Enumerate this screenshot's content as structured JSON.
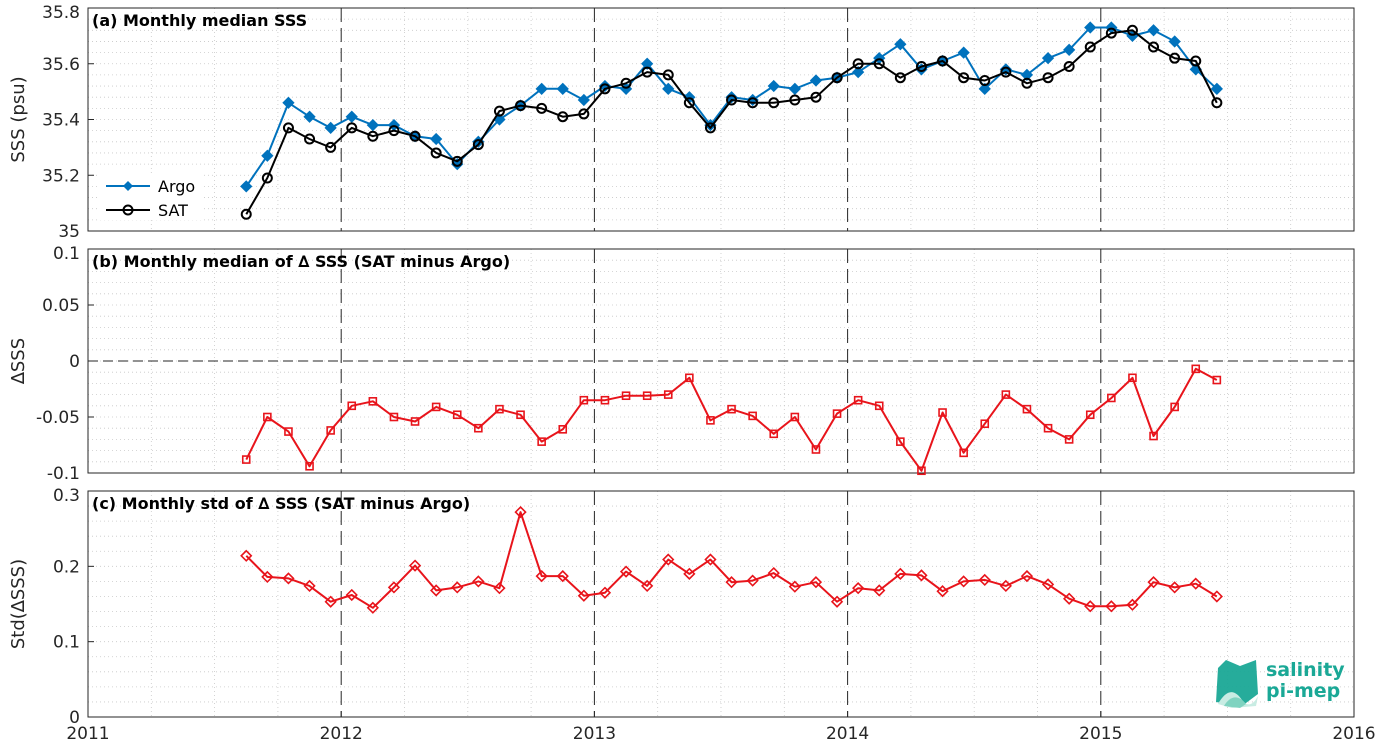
{
  "logo": {
    "line1": "salinity",
    "line2": "pi-mep",
    "color": "#1aa896"
  },
  "x_axis": {
    "ticks": [
      2011,
      2012,
      2013,
      2014,
      2015,
      2016
    ],
    "range": [
      2011,
      2016
    ]
  },
  "colors": {
    "argo": "#0072bd",
    "sat": "#000000",
    "delta": "#e8141b"
  },
  "chart_data": [
    {
      "type": "line",
      "title": "(a) Monthly median SSS",
      "ylabel": "SSS (psu)",
      "xlim": [
        2011,
        2016
      ],
      "ylim": [
        35,
        35.8
      ],
      "yticks": [
        "35",
        "35.2",
        "35.4",
        "35.6",
        "35.8"
      ],
      "grid": true,
      "legend": {
        "placement": "lower-left",
        "entries": [
          "Argo",
          "SAT"
        ]
      },
      "series": [
        {
          "name": "Argo",
          "marker": "diamond",
          "color": "#0072bd",
          "x": [
            "2011-08",
            "2011-09",
            "2011-10",
            "2011-11",
            "2011-12",
            "2012-01",
            "2012-02",
            "2012-03",
            "2012-04",
            "2012-05",
            "2012-06",
            "2012-07",
            "2012-08",
            "2012-09",
            "2012-10",
            "2012-11",
            "2012-12",
            "2013-01",
            "2013-02",
            "2013-03",
            "2013-04",
            "2013-05",
            "2013-06",
            "2013-07",
            "2013-08",
            "2013-09",
            "2013-10",
            "2013-11",
            "2013-12",
            "2014-01",
            "2014-02",
            "2014-03",
            "2014-04",
            "2014-05",
            "2014-06",
            "2014-07",
            "2014-08",
            "2014-09",
            "2014-10",
            "2014-11",
            "2014-12",
            "2015-01",
            "2015-02",
            "2015-03",
            "2015-04",
            "2015-05",
            "2015-06"
          ],
          "values": [
            35.16,
            35.27,
            35.46,
            35.41,
            35.37,
            35.41,
            35.38,
            35.38,
            35.34,
            35.33,
            35.24,
            35.32,
            35.4,
            35.45,
            35.51,
            35.51,
            35.47,
            35.52,
            35.51,
            35.6,
            35.51,
            35.48,
            35.38,
            35.48,
            35.47,
            35.52,
            35.51,
            35.54,
            35.55,
            35.57,
            35.62,
            35.67,
            35.58,
            35.61,
            35.64,
            35.51,
            35.58,
            35.56,
            35.62,
            35.65,
            35.73,
            35.73,
            35.7,
            35.72,
            35.68,
            35.58,
            35.51
          ]
        },
        {
          "name": "SAT",
          "marker": "circle",
          "color": "#000000",
          "x": [
            "2011-08",
            "2011-09",
            "2011-10",
            "2011-11",
            "2011-12",
            "2012-01",
            "2012-02",
            "2012-03",
            "2012-04",
            "2012-05",
            "2012-06",
            "2012-07",
            "2012-08",
            "2012-09",
            "2012-10",
            "2012-11",
            "2012-12",
            "2013-01",
            "2013-02",
            "2013-03",
            "2013-04",
            "2013-05",
            "2013-06",
            "2013-07",
            "2013-08",
            "2013-09",
            "2013-10",
            "2013-11",
            "2013-12",
            "2014-01",
            "2014-02",
            "2014-03",
            "2014-04",
            "2014-05",
            "2014-06",
            "2014-07",
            "2014-08",
            "2014-09",
            "2014-10",
            "2014-11",
            "2014-12",
            "2015-01",
            "2015-02",
            "2015-03",
            "2015-04",
            "2015-05",
            "2015-06"
          ],
          "values": [
            35.06,
            35.19,
            35.37,
            35.33,
            35.3,
            35.37,
            35.34,
            35.36,
            35.34,
            35.28,
            35.25,
            35.31,
            35.43,
            35.45,
            35.44,
            35.41,
            35.42,
            35.51,
            35.53,
            35.57,
            35.56,
            35.46,
            35.37,
            35.47,
            35.46,
            35.46,
            35.47,
            35.48,
            35.55,
            35.6,
            35.6,
            35.55,
            35.59,
            35.61,
            35.55,
            35.54,
            35.57,
            35.53,
            35.55,
            35.59,
            35.66,
            35.71,
            35.72,
            35.66,
            35.62,
            35.61,
            35.46
          ]
        }
      ]
    },
    {
      "type": "line",
      "title": "(b) Monthly median of ∆ SSS (SAT minus Argo)",
      "ylabel": "∆SSS",
      "xlim": [
        2011,
        2016
      ],
      "ylim": [
        -0.1,
        0.1
      ],
      "yticks": [
        "-0.1",
        "-0.05",
        "0",
        "0.05",
        "0.1"
      ],
      "grid": true,
      "series": [
        {
          "marker": "square",
          "color": "#e8141b",
          "x": [
            "2011-08",
            "2011-09",
            "2011-10",
            "2011-11",
            "2011-12",
            "2012-01",
            "2012-02",
            "2012-03",
            "2012-04",
            "2012-05",
            "2012-06",
            "2012-07",
            "2012-08",
            "2012-09",
            "2012-10",
            "2012-11",
            "2012-12",
            "2013-01",
            "2013-02",
            "2013-03",
            "2013-04",
            "2013-05",
            "2013-06",
            "2013-07",
            "2013-08",
            "2013-09",
            "2013-10",
            "2013-11",
            "2013-12",
            "2014-01",
            "2014-02",
            "2014-03",
            "2014-04",
            "2014-05",
            "2014-06",
            "2014-07",
            "2014-08",
            "2014-09",
            "2014-10",
            "2014-11",
            "2014-12",
            "2015-01",
            "2015-02",
            "2015-03",
            "2015-04",
            "2015-05",
            "2015-06"
          ],
          "values": [
            -0.088,
            -0.05,
            -0.063,
            -0.094,
            -0.062,
            -0.04,
            -0.036,
            -0.05,
            -0.054,
            -0.041,
            -0.048,
            -0.06,
            -0.043,
            -0.048,
            -0.072,
            -0.061,
            -0.035,
            -0.035,
            -0.031,
            -0.031,
            -0.03,
            -0.015,
            -0.053,
            -0.043,
            -0.049,
            -0.065,
            -0.05,
            -0.079,
            -0.047,
            -0.035,
            -0.04,
            -0.072,
            -0.098,
            -0.046,
            -0.082,
            -0.056,
            -0.03,
            -0.043,
            -0.06,
            -0.07,
            -0.048,
            -0.033,
            -0.015,
            -0.067,
            -0.041,
            -0.007,
            -0.017
          ]
        }
      ]
    },
    {
      "type": "line",
      "title": "(c) Monthly std of ∆ SSS (SAT minus Argo)",
      "ylabel": "Std(∆SSS)",
      "xlim": [
        2011,
        2016
      ],
      "ylim": [
        0,
        0.3
      ],
      "yticks": [
        "0",
        "0.1",
        "0.2",
        "0.3"
      ],
      "grid": true,
      "series": [
        {
          "marker": "diamond",
          "color": "#e8141b",
          "x": [
            "2011-08",
            "2011-09",
            "2011-10",
            "2011-11",
            "2011-12",
            "2012-01",
            "2012-02",
            "2012-03",
            "2012-04",
            "2012-05",
            "2012-06",
            "2012-07",
            "2012-08",
            "2012-09",
            "2012-10",
            "2012-11",
            "2012-12",
            "2013-01",
            "2013-02",
            "2013-03",
            "2013-04",
            "2013-05",
            "2013-06",
            "2013-07",
            "2013-08",
            "2013-09",
            "2013-10",
            "2013-11",
            "2013-12",
            "2014-01",
            "2014-02",
            "2014-03",
            "2014-04",
            "2014-05",
            "2014-06",
            "2014-07",
            "2014-08",
            "2014-09",
            "2014-10",
            "2014-11",
            "2014-12",
            "2015-01",
            "2015-02",
            "2015-03",
            "2015-04",
            "2015-05",
            "2015-06"
          ],
          "values": [
            0.214,
            0.186,
            0.184,
            0.174,
            0.153,
            0.162,
            0.145,
            0.172,
            0.201,
            0.168,
            0.172,
            0.18,
            0.171,
            0.272,
            0.187,
            0.187,
            0.161,
            0.165,
            0.193,
            0.174,
            0.209,
            0.19,
            0.209,
            0.179,
            0.181,
            0.191,
            0.173,
            0.179,
            0.153,
            0.171,
            0.168,
            0.19,
            0.188,
            0.167,
            0.18,
            0.182,
            0.174,
            0.187,
            0.176,
            0.157,
            0.147,
            0.147,
            0.149,
            0.179,
            0.172,
            0.177,
            0.16
          ]
        }
      ]
    }
  ]
}
